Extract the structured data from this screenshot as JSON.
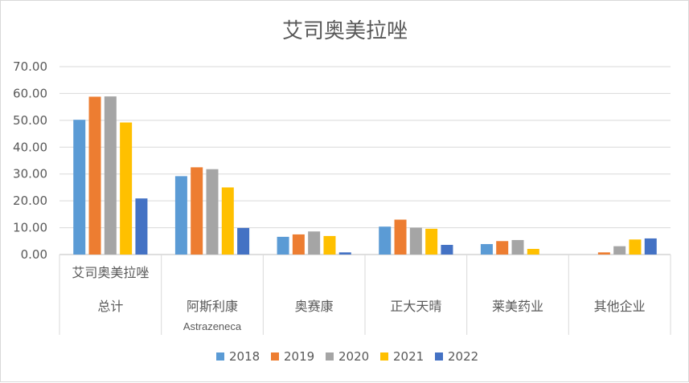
{
  "chart_data": {
    "type": "bar",
    "title": "艾司奥美拉唑",
    "xlabel": "",
    "ylabel": "",
    "ylim": [
      0,
      70
    ],
    "yticks": [
      "0.00",
      "10.00",
      "20.00",
      "30.00",
      "40.00",
      "50.00",
      "60.00",
      "70.00"
    ],
    "grid": true,
    "legend_position": "bottom",
    "categories": [
      [
        "艾司奥美拉唑",
        "总计"
      ],
      [
        "阿斯利康",
        "Astrazeneca"
      ],
      [
        "奥赛康"
      ],
      [
        "正大天晴"
      ],
      [
        "莱美药业"
      ],
      [
        "其他企业"
      ]
    ],
    "series": [
      {
        "name": "2018",
        "color": "#5B9BD5",
        "values": [
          50.2,
          29.2,
          6.6,
          10.4,
          3.9,
          0
        ]
      },
      {
        "name": "2019",
        "color": "#ED7D31",
        "values": [
          58.8,
          32.5,
          7.5,
          13.0,
          5.0,
          0.8
        ]
      },
      {
        "name": "2020",
        "color": "#A5A5A5",
        "values": [
          58.9,
          31.8,
          8.6,
          10.0,
          5.4,
          3.1
        ]
      },
      {
        "name": "2021",
        "color": "#FFC000",
        "values": [
          49.2,
          25.0,
          6.9,
          9.6,
          2.1,
          5.6
        ]
      },
      {
        "name": "2022",
        "color": "#4472C4",
        "values": [
          20.9,
          9.9,
          0.8,
          3.6,
          0,
          6.0
        ]
      }
    ]
  }
}
